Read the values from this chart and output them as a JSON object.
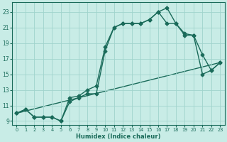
{
  "xlabel": "Humidex (Indice chaleur)",
  "xlim": [
    -0.5,
    23.5
  ],
  "ylim": [
    8.5,
    24.2
  ],
  "yticks": [
    9,
    11,
    13,
    15,
    17,
    19,
    21,
    23
  ],
  "xticks": [
    0,
    1,
    2,
    3,
    4,
    5,
    6,
    7,
    8,
    9,
    10,
    11,
    12,
    13,
    14,
    15,
    16,
    17,
    18,
    19,
    20,
    21,
    22,
    23
  ],
  "bg_color": "#c8ece6",
  "grid_color": "#a0d4cc",
  "line_color": "#1a6b5a",
  "line1_x": [
    0,
    1,
    2,
    3,
    4,
    5,
    6,
    7,
    8,
    9,
    10,
    11,
    12,
    13,
    14,
    15,
    16,
    17,
    18,
    19,
    20,
    21,
    22,
    23
  ],
  "line1_y": [
    10.0,
    10.5,
    9.5,
    9.5,
    9.5,
    9.0,
    12.0,
    12.2,
    13.0,
    13.5,
    18.5,
    21.0,
    21.5,
    21.5,
    21.5,
    22.0,
    23.0,
    23.5,
    21.5,
    20.2,
    20.0,
    17.5,
    15.5,
    16.5
  ],
  "line2_x": [
    0,
    1,
    2,
    3,
    4,
    5,
    6,
    7,
    8,
    9,
    10,
    11,
    12,
    13,
    14,
    15,
    16,
    17,
    18,
    19,
    20,
    21,
    22,
    23
  ],
  "line2_y": [
    10.0,
    10.5,
    9.5,
    9.5,
    9.5,
    9.0,
    11.5,
    12.0,
    12.5,
    12.5,
    18.0,
    21.0,
    21.5,
    21.5,
    21.5,
    22.0,
    23.0,
    21.5,
    21.5,
    20.0,
    20.0,
    15.0,
    15.5,
    16.5
  ],
  "line3_x": [
    0,
    23
  ],
  "line3_y": [
    10.0,
    16.5
  ],
  "marker": "D",
  "marker_size": 2.5,
  "linewidth": 1.0
}
